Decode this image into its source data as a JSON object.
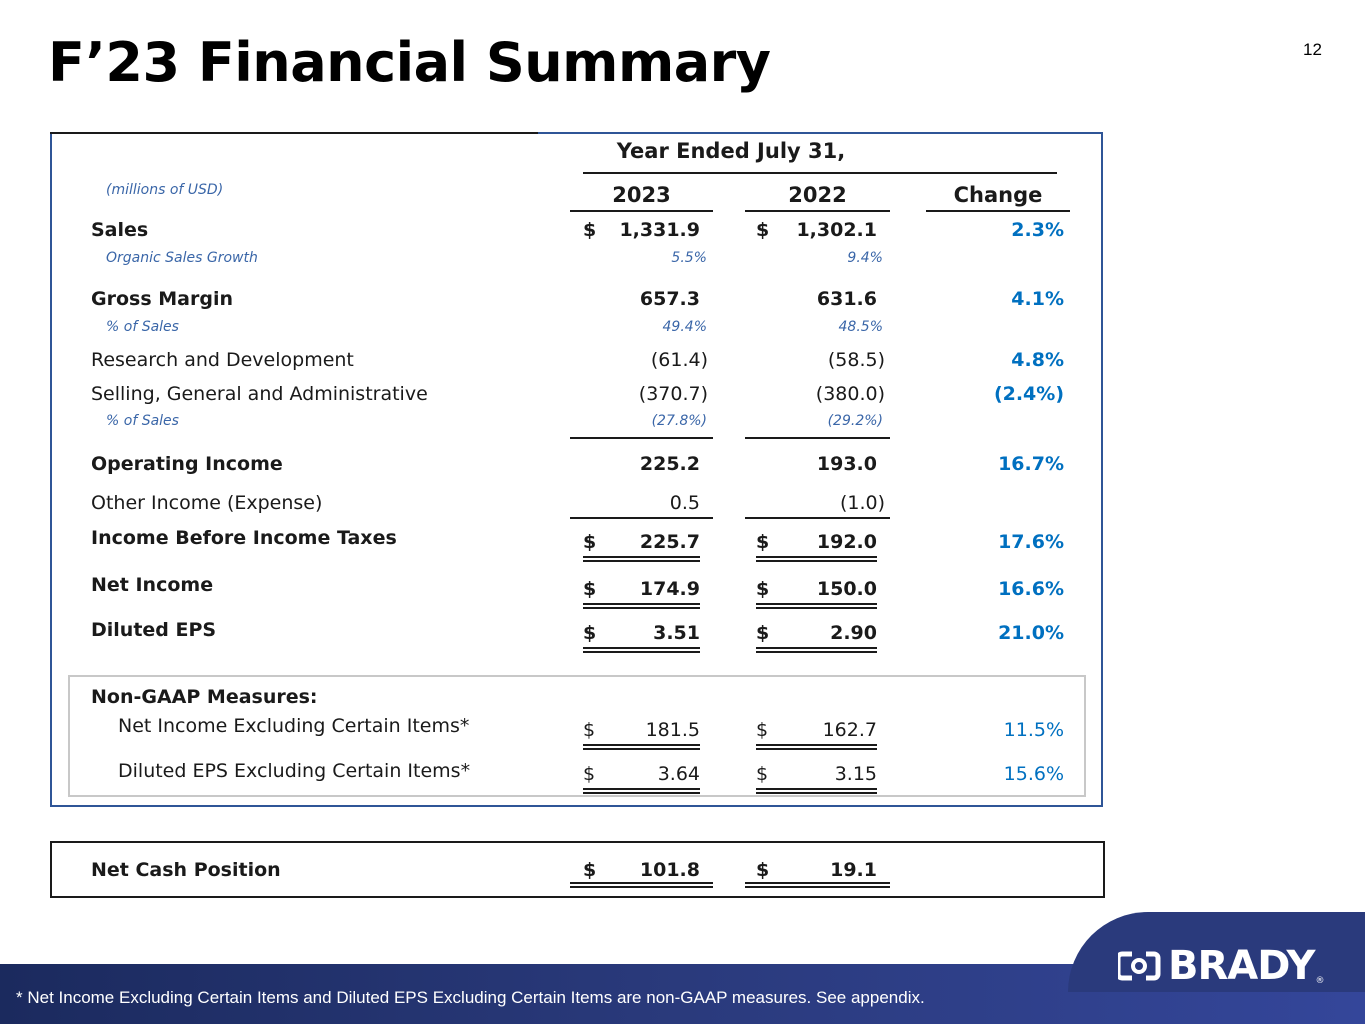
{
  "slide": {
    "title": "F’23 Financial Summary",
    "page_number": "12"
  },
  "table": {
    "period_header": "Year Ended July 31,",
    "units_note": "(millions of USD)",
    "col_2023": "2023",
    "col_2022": "2022",
    "col_change": "Change",
    "rows": {
      "sales": {
        "label": "Sales",
        "cur_2023": "$",
        "v2023": "1,331.9",
        "cur_2022": "$",
        "v2022": "1,302.1",
        "change": "2.3%"
      },
      "organic": {
        "label": "Organic Sales Growth",
        "v2023": "5.5%",
        "v2022": "9.4%"
      },
      "gross_margin": {
        "label": "Gross Margin",
        "v2023": "657.3",
        "v2022": "631.6",
        "change": "4.1%"
      },
      "gm_pct": {
        "label": "% of Sales",
        "v2023": "49.4%",
        "v2022": "48.5%"
      },
      "rnd": {
        "label": "Research and Development",
        "v2023": "(61.4)",
        "v2022": "(58.5)",
        "change": "4.8%"
      },
      "sga": {
        "label": "Selling, General and Administrative",
        "v2023": "(370.7)",
        "v2022": "(380.0)",
        "change": "(2.4%)"
      },
      "sga_pct": {
        "label": "% of Sales",
        "v2023": "(27.8%)",
        "v2022": "(29.2%)"
      },
      "op_income": {
        "label": "Operating Income",
        "v2023": "225.2",
        "v2022": "193.0",
        "change": "16.7%"
      },
      "other": {
        "label": "Other Income (Expense)",
        "v2023": "0.5",
        "v2022": "(1.0)"
      },
      "pretax": {
        "label": "Income Before Income Taxes",
        "cur_2023": "$",
        "v2023": "225.7",
        "cur_2022": "$",
        "v2022": "192.0",
        "change": "17.6%"
      },
      "net_income": {
        "label": "Net Income",
        "cur_2023": "$",
        "v2023": "174.9",
        "cur_2022": "$",
        "v2022": "150.0",
        "change": "16.6%"
      },
      "eps": {
        "label": "Diluted EPS",
        "cur_2023": "$",
        "v2023": "3.51",
        "cur_2022": "$",
        "v2022": "2.90",
        "change": "21.0%"
      }
    },
    "non_gaap": {
      "heading": "Non-GAAP Measures:",
      "net_income_ex": {
        "label": "Net Income Excluding Certain Items*",
        "cur_2023": "$",
        "v2023": "181.5",
        "cur_2022": "$",
        "v2022": "162.7",
        "change": "11.5%"
      },
      "eps_ex": {
        "label": "Diluted EPS Excluding Certain Items*",
        "cur_2023": "$",
        "v2023": "3.64",
        "cur_2022": "$",
        "v2022": "3.15",
        "change": "15.6%"
      }
    },
    "net_cash": {
      "label": "Net Cash Position",
      "cur_2023": "$",
      "v2023": "101.8",
      "cur_2022": "$",
      "v2022": "19.1"
    }
  },
  "footer": {
    "note": "*   Net Income Excluding Certain Items and Diluted EPS Excluding Certain Items are non-GAAP measures.  See appendix.",
    "logo_text": "BRADY",
    "logo_reg": "®"
  },
  "colors": {
    "accent_blue": "#0070c0",
    "frame_blue": "#2f5597",
    "footer_navy": "#2a3a7c"
  }
}
